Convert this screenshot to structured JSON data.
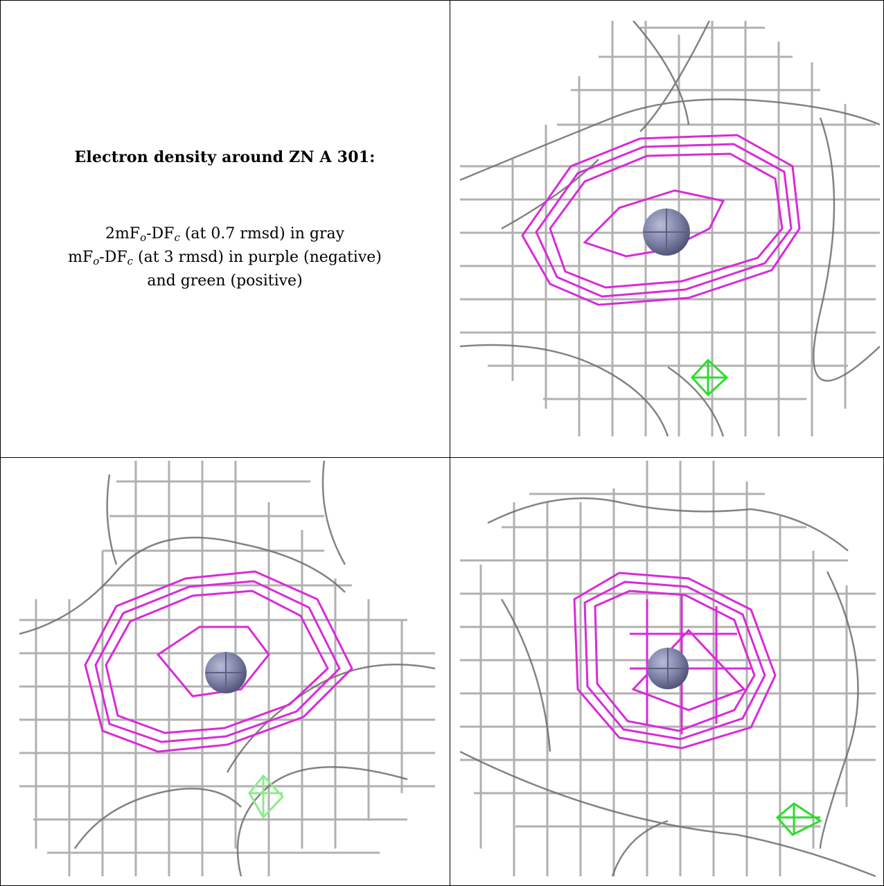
{
  "caption": {
    "title": "Electron density around ZN A 301:",
    "line1": {
      "a": "2mF",
      "o": "o",
      "b": "-DF",
      "c": "c",
      "rest": " (at 0.7 rmsd) in gray"
    },
    "line2": {
      "a": "mF",
      "o": "o",
      "b": "-DF",
      "c": "c",
      "rest": " (at 3 rmsd) in purple (negative)"
    },
    "line3": "and green (positive)"
  },
  "colors": {
    "density_2fofc": "#9a9a9a",
    "density_negative": "#d92ad9",
    "density_positive": "#2edb2e",
    "zinc_atom": "#7f83a8"
  },
  "panels": [
    {
      "name": "view-top-right",
      "atom": "ZN",
      "has_positive_peak": true
    },
    {
      "name": "view-bottom-left",
      "atom": "ZN",
      "has_positive_peak": true
    },
    {
      "name": "view-bottom-right",
      "atom": "ZN",
      "has_positive_peak": true
    }
  ]
}
